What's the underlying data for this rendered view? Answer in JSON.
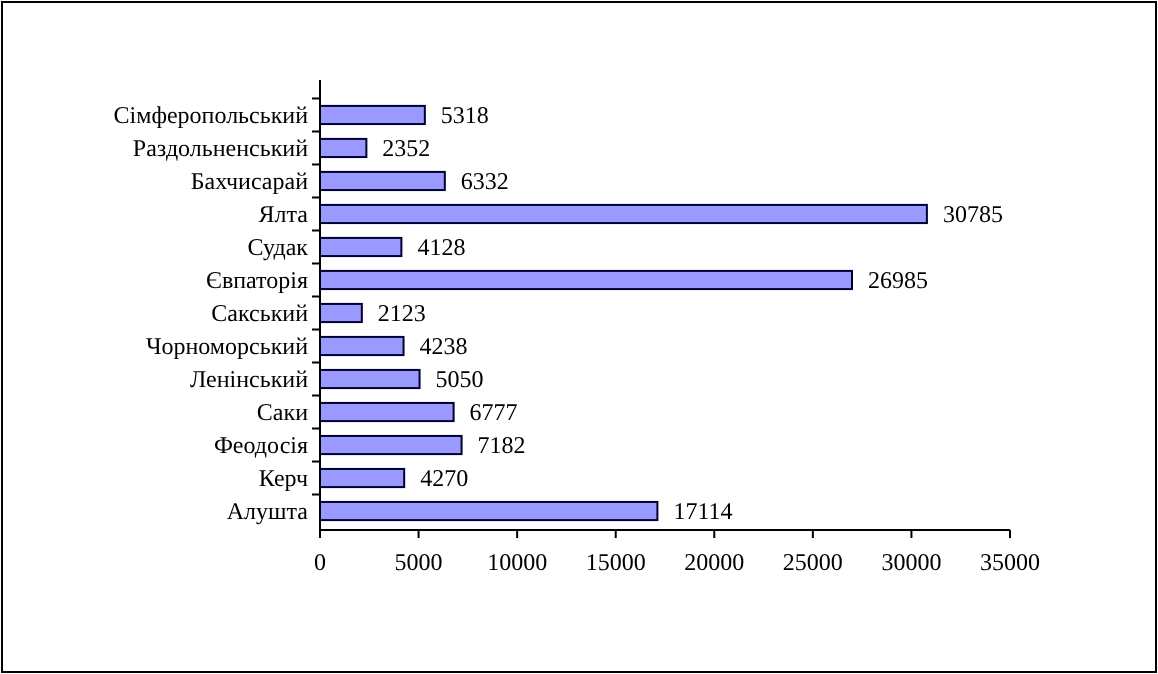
{
  "chart_data": {
    "type": "bar",
    "orientation": "horizontal",
    "categories": [
      "Сімферопольський",
      "Раздольненський",
      "Бахчисарай",
      "Ялта",
      "Судак",
      "Євпаторія",
      "Сакський",
      "Чорноморський",
      "Ленінський",
      "Саки",
      "Феодосія",
      "Керч",
      "Алушта"
    ],
    "values": [
      5318,
      2352,
      6332,
      30785,
      4128,
      26985,
      2123,
      4238,
      5050,
      6777,
      7182,
      4270,
      17114
    ],
    "color": "#9999ff",
    "xlim": [
      0,
      35000
    ],
    "xticks": [
      0,
      5000,
      10000,
      15000,
      20000,
      25000,
      30000,
      35000
    ],
    "grid": false,
    "data_labels": true
  }
}
